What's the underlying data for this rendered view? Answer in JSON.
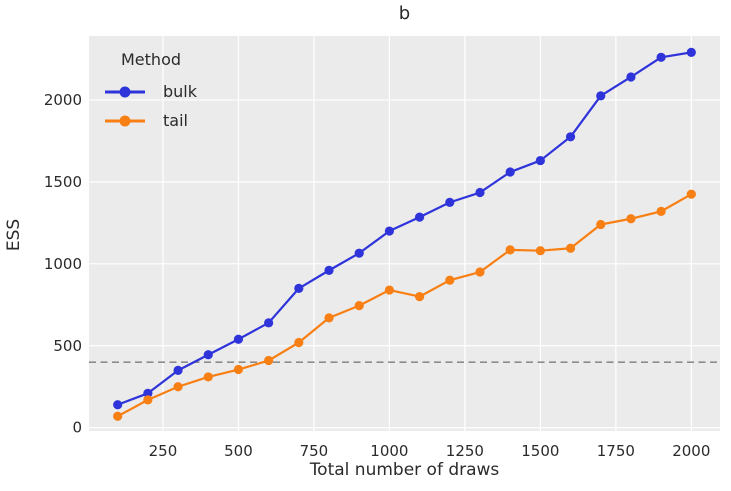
{
  "chart_data": {
    "type": "line",
    "title": "b",
    "xlabel": "Total number of draws",
    "ylabel": "ESS",
    "x": [
      100,
      200,
      300,
      400,
      500,
      600,
      700,
      800,
      900,
      1000,
      1100,
      1200,
      1300,
      1400,
      1500,
      1600,
      1700,
      1800,
      1900,
      2000
    ],
    "series": [
      {
        "name": "bulk",
        "color": "#2e34da",
        "values": [
          140,
          210,
          350,
          445,
          540,
          640,
          850,
          960,
          1065,
          1200,
          1285,
          1375,
          1435,
          1560,
          1630,
          1775,
          2025,
          2140,
          2260,
          2290
        ]
      },
      {
        "name": "tail",
        "color": "#f87f13",
        "values": [
          70,
          170,
          250,
          310,
          355,
          410,
          520,
          670,
          745,
          840,
          800,
          900,
          950,
          1085,
          1080,
          1095,
          1240,
          1275,
          1320,
          1425
        ]
      }
    ],
    "reference_line": {
      "y": 400,
      "style": "dashed",
      "color": "#8c8c8c"
    },
    "xticks": [
      250,
      500,
      750,
      1000,
      1250,
      1500,
      1750,
      2000
    ],
    "yticks": [
      0,
      500,
      1000,
      1500,
      2000
    ],
    "xlim": [
      5,
      2095
    ],
    "ylim": [
      -20,
      2390
    ],
    "grid": true,
    "legend": {
      "title": "Method",
      "position": "upper-left"
    },
    "plot_bg_color": "#ebebeb",
    "grid_color": "#ffffff",
    "text_color": "#2b2b2b"
  }
}
